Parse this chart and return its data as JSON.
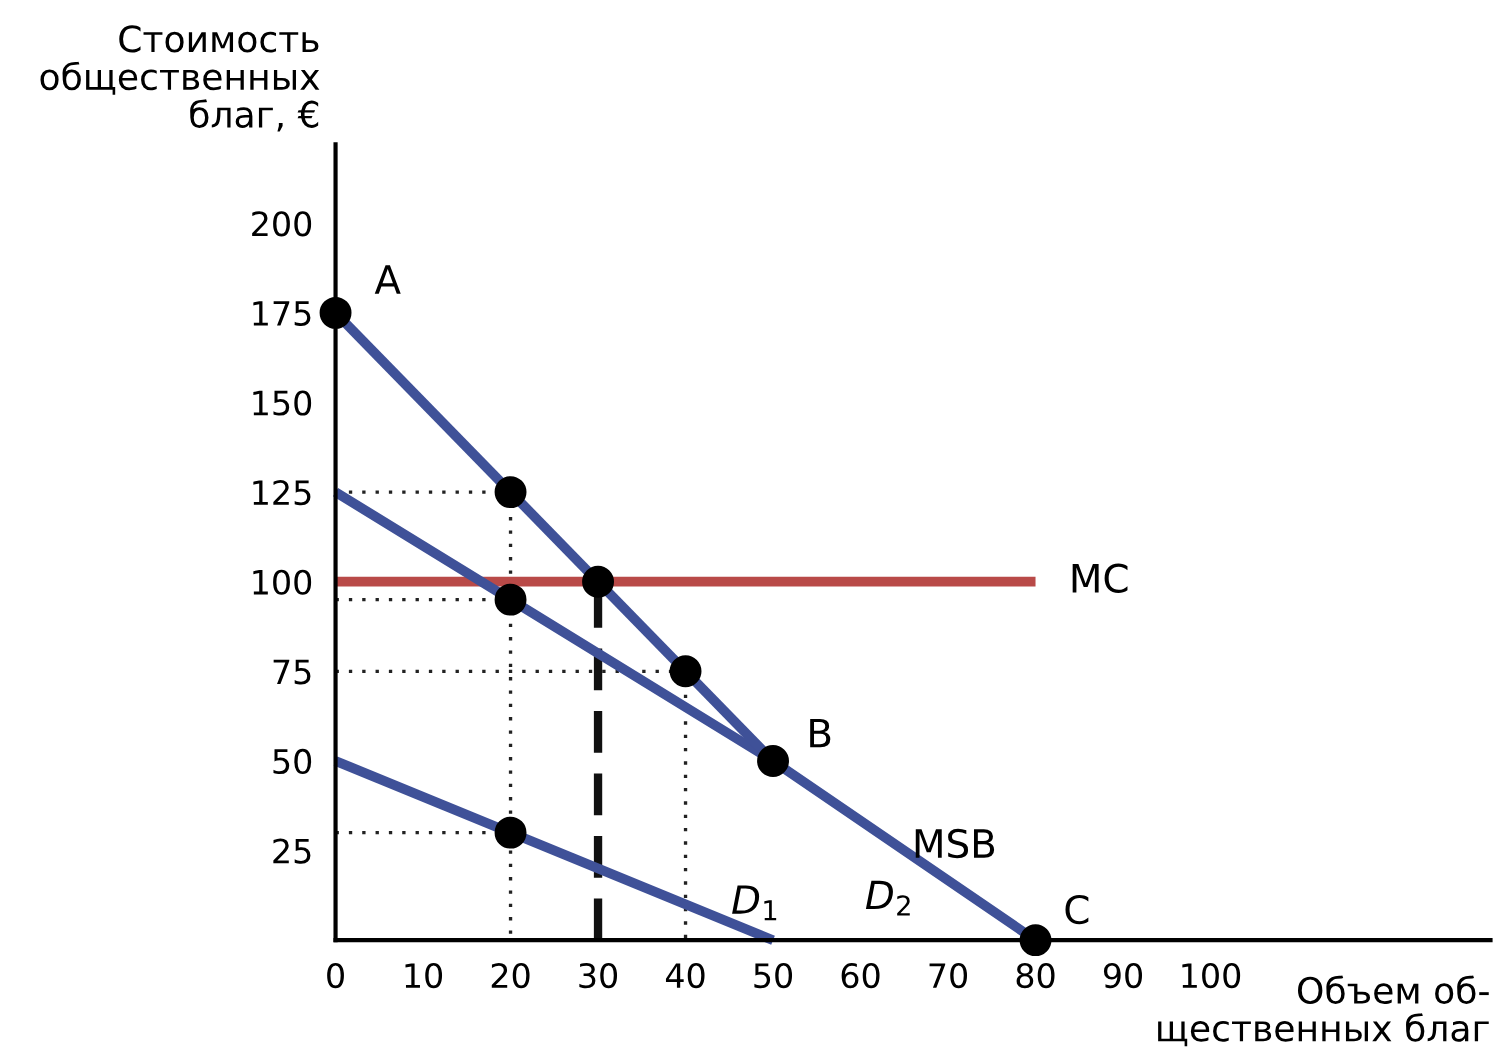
{
  "chart_data": {
    "type": "line",
    "xlabel": "Объем об-\nщественных благ",
    "ylabel": "Стоимость\nобщественных\nблаг, €",
    "xlim": [
      0,
      132
    ],
    "ylim": [
      0,
      222
    ],
    "xticks": [
      0,
      10,
      20,
      30,
      40,
      50,
      60,
      70,
      80,
      90,
      100
    ],
    "yticks": [
      25,
      50,
      75,
      100,
      125,
      150,
      175,
      200
    ],
    "grid": false,
    "legend": false,
    "marker": "none",
    "series": [
      {
        "type": "line",
        "x": [
          0,
          20,
          20
        ],
        "values": [
          125,
          125,
          0
        ],
        "color": "#222222",
        "line_style": "dotted"
      },
      {
        "type": "line",
        "x": [
          0,
          20
        ],
        "values": [
          95,
          95
        ],
        "color": "#222222",
        "line_style": "dotted"
      },
      {
        "type": "line",
        "x": [
          0,
          40,
          40
        ],
        "values": [
          75,
          75,
          0
        ],
        "color": "#222222",
        "line_style": "dotted"
      },
      {
        "type": "line",
        "x": [
          0,
          20
        ],
        "values": [
          30,
          30
        ],
        "color": "#222222",
        "line_style": "dotted"
      },
      {
        "type": "line",
        "x": [
          30,
          30
        ],
        "values": [
          0,
          100
        ],
        "color": "#111111",
        "line_style": "dashed"
      },
      {
        "type": "line",
        "x": [
          0,
          80
        ],
        "values": [
          100,
          100
        ],
        "color": "#b94a48",
        "line_style": "solid"
      },
      {
        "type": "line",
        "x": [
          0,
          50
        ],
        "values": [
          50,
          0
        ],
        "color": "#3f5198",
        "line_style": "solid"
      },
      {
        "type": "line",
        "x": [
          0,
          50,
          80
        ],
        "values": [
          125,
          50,
          0
        ],
        "color": "#3f5198",
        "line_style": "solid"
      },
      {
        "type": "line",
        "x": [
          0,
          50
        ],
        "values": [
          175,
          50
        ],
        "color": "#3f5198",
        "line_style": "solid"
      },
      {
        "type": "scatter",
        "x": [
          0,
          20,
          20,
          30,
          40,
          50,
          80,
          20
        ],
        "values": [
          175,
          125,
          95,
          100,
          75,
          50,
          0,
          30
        ],
        "color": "#000000",
        "marker": "circle"
      }
    ],
    "annotations": [
      {
        "text": "A",
        "x": 0,
        "y": 175
      },
      {
        "text": "B",
        "x": 50,
        "y": 50
      },
      {
        "text": "C",
        "x": 80,
        "y": 0
      },
      {
        "text": "MC",
        "x": 80,
        "y": 100
      },
      {
        "text": "MSB",
        "x": 72,
        "y": 13
      },
      {
        "text": "D$_{1}$",
        "x": 48,
        "y": 2
      },
      {
        "text": "D$_{2}$",
        "x": 68,
        "y": 20
      }
    ]
  }
}
